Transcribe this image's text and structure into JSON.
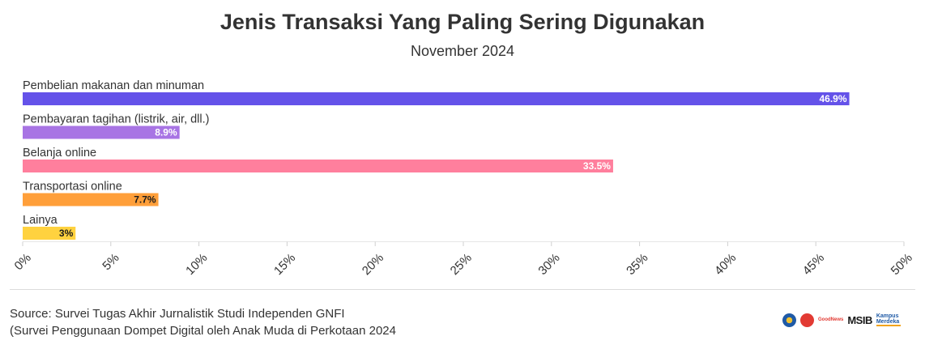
{
  "chart_data": {
    "type": "bar",
    "orientation": "horizontal",
    "title": "Jenis Transaksi Yang Paling Sering Digunakan",
    "subtitle": "November 2024",
    "categories": [
      "Pembelian makanan dan minuman",
      "Pembayaran tagihan (listrik, air, dll.)",
      "Belanja online",
      "Transportasi online",
      "Lainya"
    ],
    "values": [
      46.9,
      8.9,
      33.5,
      7.7,
      3
    ],
    "value_labels": [
      "46.9%",
      "8.9%",
      "33.5%",
      "7.7%",
      "3%"
    ],
    "colors": [
      "#6452e9",
      "#a874e4",
      "#ff7f9d",
      "#ff9f3a",
      "#ffd23f"
    ],
    "value_label_colors": [
      "#ffffff",
      "#ffffff",
      "#ffffff",
      "#1a1a1a",
      "#1a1a1a"
    ],
    "xlim": [
      0,
      50
    ],
    "x_ticks": [
      "0%",
      "5%",
      "10%",
      "15%",
      "20%",
      "25%",
      "30%",
      "35%",
      "40%",
      "45%",
      "50%"
    ],
    "grid": false
  },
  "footer": {
    "source_line1": "Source: Survei Tugas Akhir Jurnalistik Studi Independen GNFI",
    "source_line2": "(Survei Penggunaan Dompet Digital oleh Anak Muda di Perkotaan 2024",
    "logos": {
      "logo1_text": "",
      "logo2_text": "GoodNews",
      "logo3_text": "MSIB",
      "logo4_text": "Kampus Merdeka"
    }
  }
}
